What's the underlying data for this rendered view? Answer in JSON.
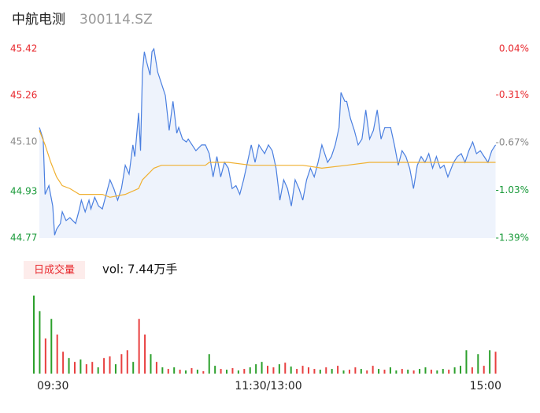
{
  "header": {
    "name": "中航电测",
    "code": "300114.SZ"
  },
  "chart_data": [
    {
      "type": "line",
      "xlim": [
        0,
        240
      ],
      "ylim": [
        44.77,
        45.42
      ],
      "yticks": [
        45.42,
        45.26,
        {
          "value": 45.1,
          "label": "45.10"
        },
        44.93,
        44.77
      ],
      "ytick_colors": [
        "#e8282d",
        "#e8282d",
        "#888888",
        "#1a9a3a",
        "#1a9a3a"
      ],
      "y2lim": [
        -1.39,
        0.04
      ],
      "y2ticks": [
        {
          "value": 0.04,
          "label": "0.04%"
        },
        {
          "value": -0.31,
          "label": "-0.31%"
        },
        {
          "value": -0.67,
          "label": "-0.67%"
        },
        {
          "value": -1.03,
          "label": "-1.03%"
        },
        {
          "value": -1.39,
          "label": "-1.39%"
        }
      ],
      "xticks": [
        {
          "value": 0,
          "label": "09:30"
        },
        {
          "value": 120,
          "label": "11:30/13:00"
        },
        {
          "value": 240,
          "label": "15:00"
        }
      ],
      "series": [
        {
          "color": "#4a7fe0",
          "area": "#eef3fc",
          "x": [
            0,
            2,
            3,
            5,
            7,
            8,
            9,
            11,
            12,
            14,
            16,
            19,
            21,
            22,
            24,
            26,
            27,
            29,
            31,
            33,
            35,
            37,
            39,
            41,
            43,
            45,
            47,
            49,
            50,
            52,
            53,
            54,
            55,
            56,
            58,
            59,
            60,
            62,
            64,
            66,
            68,
            70,
            72,
            73,
            75,
            77,
            78,
            80,
            82,
            85,
            87,
            89,
            91,
            93,
            95,
            97,
            99,
            101,
            103,
            105,
            107,
            109,
            111,
            113,
            115,
            118,
            120,
            122,
            124,
            126,
            128,
            130,
            132,
            134,
            136,
            138,
            140,
            142,
            144,
            146,
            148,
            151,
            153,
            155,
            157,
            158,
            160,
            161,
            163,
            165,
            167,
            169,
            171,
            173,
            175,
            177,
            179,
            181,
            184,
            186,
            188,
            190,
            192,
            194,
            196,
            198,
            200,
            202,
            204,
            206,
            208,
            210,
            212,
            214,
            217,
            219,
            221,
            223,
            225,
            227,
            229,
            231,
            233,
            235,
            237,
            239
          ],
          "values": [
            45.15,
            45.11,
            44.92,
            44.95,
            44.88,
            44.78,
            44.8,
            44.82,
            44.86,
            44.83,
            44.84,
            44.82,
            44.87,
            44.9,
            44.86,
            44.9,
            44.87,
            44.91,
            44.88,
            44.87,
            44.92,
            44.97,
            44.94,
            44.9,
            44.94,
            45.02,
            44.99,
            45.09,
            45.05,
            45.2,
            45.07,
            45.34,
            45.41,
            45.38,
            45.33,
            45.41,
            45.42,
            45.34,
            45.3,
            45.26,
            45.14,
            45.24,
            45.13,
            45.15,
            45.11,
            45.1,
            45.11,
            45.09,
            45.07,
            45.09,
            45.09,
            45.06,
            44.98,
            45.05,
            44.98,
            45.03,
            45.01,
            44.94,
            44.95,
            44.92,
            44.97,
            45.03,
            45.09,
            45.03,
            45.09,
            45.06,
            45.09,
            45.07,
            45.01,
            44.9,
            44.97,
            44.94,
            44.88,
            44.97,
            44.94,
            44.9,
            44.97,
            45.01,
            44.98,
            45.03,
            45.09,
            45.03,
            45.05,
            45.09,
            45.15,
            45.27,
            45.24,
            45.24,
            45.18,
            45.14,
            45.09,
            45.11,
            45.21,
            45.11,
            45.14,
            45.21,
            45.11,
            45.15,
            45.15,
            45.09,
            45.02,
            45.07,
            45.05,
            45.01,
            44.94,
            45.02,
            45.05,
            45.03,
            45.06,
            45.01,
            45.05,
            45.01,
            45.02,
            44.98,
            45.03,
            45.05,
            45.06,
            45.03,
            45.07,
            45.1,
            45.06,
            45.07,
            45.05,
            45.03,
            45.07,
            45.09
          ]
        },
        {
          "color": "#f0b030",
          "x": [
            0,
            3,
            6,
            9,
            12,
            16,
            21,
            33,
            37,
            45,
            52,
            54,
            57,
            60,
            64,
            87,
            89,
            99,
            111,
            138,
            148,
            161,
            173,
            239
          ],
          "values": [
            45.14,
            45.09,
            45.03,
            44.98,
            44.95,
            44.94,
            44.92,
            44.92,
            44.91,
            44.92,
            44.94,
            44.97,
            44.99,
            45.01,
            45.02,
            45.02,
            45.03,
            45.03,
            45.02,
            45.02,
            45.01,
            45.02,
            45.03,
            45.03
          ]
        }
      ]
    },
    {
      "type": "bar",
      "label": "日成交量",
      "summary": "vol: 7.44万手",
      "xlim": [
        0,
        240
      ],
      "ylim": [
        0,
        100
      ],
      "x": [
        0,
        3,
        6,
        9,
        12,
        15,
        18,
        21,
        24,
        27,
        30,
        33,
        36,
        39,
        42,
        45,
        48,
        51,
        54,
        57,
        60,
        63,
        66,
        69,
        72,
        75,
        78,
        81,
        84,
        87,
        90,
        93,
        96,
        99,
        102,
        105,
        108,
        111,
        114,
        117,
        120,
        123,
        126,
        129,
        132,
        135,
        138,
        141,
        144,
        147,
        150,
        153,
        156,
        159,
        162,
        165,
        168,
        171,
        174,
        177,
        180,
        183,
        186,
        189,
        192,
        195,
        198,
        201,
        204,
        207,
        210,
        213,
        216,
        219,
        222,
        225,
        228,
        231,
        234,
        237
      ],
      "values": [
        100,
        80,
        45,
        70,
        50,
        28,
        20,
        15,
        18,
        12,
        15,
        8,
        20,
        22,
        12,
        25,
        30,
        15,
        70,
        50,
        25,
        15,
        8,
        6,
        8,
        5,
        4,
        7,
        5,
        3,
        25,
        10,
        6,
        5,
        7,
        4,
        6,
        8,
        12,
        15,
        10,
        8,
        12,
        14,
        9,
        6,
        10,
        8,
        6,
        5,
        8,
        6,
        10,
        4,
        5,
        8,
        6,
        4,
        10,
        6,
        5,
        8,
        4,
        6,
        5,
        4,
        6,
        8,
        5,
        4,
        6,
        5,
        8,
        10,
        30,
        8,
        25,
        10,
        30,
        28
      ],
      "colors": [
        "#2ca02c",
        "#2ca02c",
        "#e84040",
        "#2ca02c",
        "#e84040",
        "#e84040",
        "#2ca02c",
        "#e84040",
        "#2ca02c",
        "#e84040",
        "#e84040",
        "#2ca02c",
        "#e84040",
        "#e84040",
        "#2ca02c",
        "#e84040",
        "#e84040",
        "#2ca02c",
        "#e84040",
        "#e84040",
        "#2ca02c",
        "#e84040",
        "#2ca02c",
        "#e84040",
        "#2ca02c",
        "#e84040",
        "#2ca02c",
        "#e84040",
        "#2ca02c",
        "#e84040",
        "#2ca02c",
        "#2ca02c",
        "#e84040",
        "#2ca02c",
        "#e84040",
        "#2ca02c",
        "#e84040",
        "#2ca02c",
        "#2ca02c",
        "#2ca02c",
        "#e84040",
        "#e84040",
        "#2ca02c",
        "#e84040",
        "#2ca02c",
        "#e84040",
        "#e84040",
        "#e84040",
        "#e84040",
        "#2ca02c",
        "#e84040",
        "#2ca02c",
        "#e84040",
        "#2ca02c",
        "#e84040",
        "#e84040",
        "#2ca02c",
        "#e84040",
        "#e84040",
        "#2ca02c",
        "#e84040",
        "#2ca02c",
        "#2ca02c",
        "#e84040",
        "#2ca02c",
        "#e84040",
        "#2ca02c",
        "#2ca02c",
        "#e84040",
        "#2ca02c",
        "#2ca02c",
        "#e84040",
        "#2ca02c",
        "#2ca02c",
        "#2ca02c",
        "#e84040",
        "#2ca02c",
        "#e84040",
        "#2ca02c",
        "#e84040"
      ]
    }
  ]
}
